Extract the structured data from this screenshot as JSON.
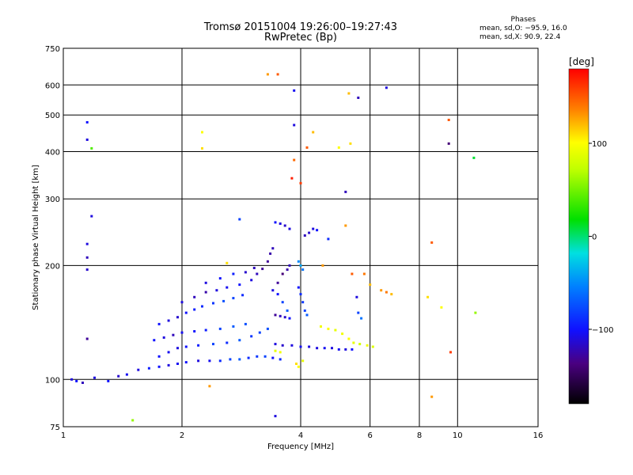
{
  "header": {
    "title_line1": "Tromsø 20151004 19:26:00–19:27:43",
    "title_line2": "RwPretec (Bp)"
  },
  "phases_box": {
    "title": "Phases",
    "line_o": "mean, sd,O: −95.9, 16.0",
    "line_x": "mean, sd,X:  90.9, 22.4"
  },
  "colorbar": {
    "label": "[deg]",
    "tick_labels": [
      "100",
      "0",
      "−100"
    ],
    "tick_values": [
      100,
      0,
      -100
    ],
    "range": [
      -180,
      180
    ]
  },
  "chart_data": {
    "type": "scatter",
    "xlabel": "Frequency [MHz]",
    "ylabel": "Stationary phase Virtual Height [km]",
    "x_scale": "log",
    "y_scale": "log",
    "xlim": [
      1,
      16
    ],
    "ylim": [
      75,
      750
    ],
    "grid": true,
    "x_ticks": [
      1,
      2,
      4,
      6,
      8,
      10,
      16
    ],
    "x_tick_labels": [
      "1",
      "2",
      "4",
      "6",
      "8",
      "10",
      "16"
    ],
    "y_ticks": [
      75,
      100,
      200,
      300,
      400,
      500,
      600,
      750
    ],
    "y_tick_labels": [
      "75",
      "100",
      "200",
      "300",
      "400",
      "500",
      "600",
      "750"
    ],
    "series": [
      {
        "mode": "O",
        "points": [
          [
            1.05,
            100,
            -110
          ],
          [
            1.08,
            99,
            -100
          ],
          [
            1.12,
            98,
            -120
          ],
          [
            1.2,
            101,
            -110
          ],
          [
            1.3,
            99,
            -100
          ],
          [
            1.38,
            102,
            -115
          ],
          [
            1.45,
            103,
            -105
          ],
          [
            1.55,
            106,
            -110
          ],
          [
            1.65,
            107,
            -95
          ],
          [
            1.75,
            108,
            -100
          ],
          [
            1.85,
            109,
            -110
          ],
          [
            1.95,
            110,
            -105
          ],
          [
            2.05,
            111,
            -100
          ],
          [
            2.2,
            112,
            -110
          ],
          [
            2.35,
            112,
            -105
          ],
          [
            2.5,
            112,
            -90
          ],
          [
            2.65,
            113,
            -80
          ],
          [
            2.8,
            113,
            -70
          ],
          [
            2.95,
            114,
            -90
          ],
          [
            3.1,
            115,
            -85
          ],
          [
            3.25,
            115,
            -80
          ],
          [
            3.4,
            114,
            -100
          ],
          [
            3.55,
            113,
            -90
          ],
          [
            1.75,
            115,
            -100
          ],
          [
            1.85,
            118,
            -105
          ],
          [
            1.95,
            121,
            -110
          ],
          [
            2.05,
            122,
            -100
          ],
          [
            2.2,
            123,
            -95
          ],
          [
            2.4,
            124,
            -80
          ],
          [
            2.6,
            125,
            -90
          ],
          [
            2.8,
            127,
            -70
          ],
          [
            3.0,
            130,
            -85
          ],
          [
            3.15,
            133,
            -80
          ],
          [
            3.3,
            136,
            -75
          ],
          [
            1.7,
            127,
            -100
          ],
          [
            1.8,
            129,
            -110
          ],
          [
            1.9,
            131,
            -120
          ],
          [
            2.0,
            133,
            -105
          ],
          [
            2.15,
            134,
            -100
          ],
          [
            2.3,
            135,
            -95
          ],
          [
            2.5,
            136,
            -80
          ],
          [
            2.7,
            138,
            -70
          ],
          [
            2.9,
            140,
            -75
          ],
          [
            1.75,
            140,
            -100
          ],
          [
            1.85,
            143,
            -110
          ],
          [
            1.95,
            146,
            -115
          ],
          [
            2.05,
            150,
            -100
          ],
          [
            2.15,
            153,
            -95
          ],
          [
            2.25,
            156,
            -90
          ],
          [
            2.4,
            159,
            -85
          ],
          [
            2.55,
            161,
            -75
          ],
          [
            2.7,
            164,
            -80
          ],
          [
            2.85,
            167,
            -90
          ],
          [
            2.0,
            160,
            -110
          ],
          [
            2.15,
            165,
            -120
          ],
          [
            2.3,
            170,
            -125
          ],
          [
            2.45,
            172,
            -110
          ],
          [
            2.6,
            175,
            -105
          ],
          [
            2.8,
            178,
            -100
          ],
          [
            3.0,
            183,
            -110
          ],
          [
            3.1,
            190,
            -120
          ],
          [
            3.2,
            196,
            -130
          ],
          [
            3.3,
            205,
            -130
          ],
          [
            3.35,
            215,
            -125
          ],
          [
            3.4,
            222,
            -120
          ],
          [
            2.3,
            180,
            -110
          ],
          [
            2.5,
            185,
            -100
          ],
          [
            2.7,
            190,
            -95
          ],
          [
            2.9,
            192,
            -115
          ],
          [
            3.05,
            197,
            -120
          ],
          [
            3.4,
            172,
            -110
          ],
          [
            3.5,
            168,
            -100
          ],
          [
            3.6,
            160,
            -80
          ],
          [
            3.7,
            152,
            -70
          ],
          [
            3.45,
            148,
            -130
          ],
          [
            3.55,
            147,
            -120
          ],
          [
            3.65,
            146,
            -115
          ],
          [
            3.75,
            145,
            -100
          ],
          [
            3.5,
            180,
            -130
          ],
          [
            3.6,
            190,
            -140
          ],
          [
            3.7,
            195,
            -125
          ],
          [
            3.75,
            200,
            -120
          ],
          [
            3.45,
            260,
            -100
          ],
          [
            3.55,
            258,
            -110
          ],
          [
            3.65,
            255,
            -115
          ],
          [
            3.75,
            250,
            -110
          ],
          [
            4.3,
            250,
            -110
          ],
          [
            4.4,
            248,
            -100
          ],
          [
            4.1,
            240,
            -120
          ],
          [
            4.2,
            244,
            -115
          ],
          [
            3.45,
            124,
            -110
          ],
          [
            3.6,
            123,
            -115
          ],
          [
            3.8,
            123,
            -110
          ],
          [
            4.0,
            122,
            -105
          ],
          [
            4.2,
            122,
            -110
          ],
          [
            4.4,
            121,
            -110
          ],
          [
            4.6,
            121,
            -105
          ],
          [
            4.8,
            121,
            -110
          ],
          [
            5.0,
            120,
            -105
          ],
          [
            5.2,
            120,
            -110
          ],
          [
            5.4,
            120,
            -100
          ],
          [
            3.95,
            175,
            -100
          ],
          [
            4.0,
            168,
            -90
          ],
          [
            4.05,
            160,
            -85
          ],
          [
            4.1,
            152,
            -80
          ],
          [
            4.15,
            148,
            -70
          ],
          [
            3.95,
            205,
            -50
          ],
          [
            4.0,
            200,
            -40
          ],
          [
            4.05,
            195,
            -60
          ],
          [
            5.6,
            150,
            -80
          ],
          [
            5.7,
            145,
            -60
          ],
          [
            5.55,
            165,
            -110
          ],
          [
            1.15,
            478,
            -100
          ],
          [
            1.15,
            430,
            -110
          ],
          [
            1.15,
            228,
            -110
          ],
          [
            1.15,
            210,
            -120
          ],
          [
            1.15,
            195,
            -115
          ],
          [
            1.15,
            128,
            -130
          ],
          [
            1.18,
            270,
            -110
          ],
          [
            3.85,
            470,
            -110
          ],
          [
            3.85,
            580,
            -105
          ],
          [
            5.2,
            313,
            -120
          ],
          [
            5.6,
            555,
            -120
          ],
          [
            6.6,
            590,
            -110
          ],
          [
            2.8,
            265,
            -80
          ],
          [
            3.45,
            80,
            -110
          ],
          [
            4.7,
            235,
            -90
          ],
          [
            9.5,
            420,
            -140
          ]
        ]
      },
      {
        "mode": "X",
        "points": [
          [
            1.18,
            408,
            40
          ],
          [
            1.5,
            78,
            60
          ],
          [
            2.25,
            450,
            100
          ],
          [
            2.25,
            408,
            110
          ],
          [
            2.35,
            96,
            130
          ],
          [
            2.6,
            203,
            110
          ],
          [
            3.3,
            640,
            130
          ],
          [
            3.5,
            640,
            150
          ],
          [
            3.8,
            340,
            170
          ],
          [
            4.15,
            410,
            150
          ],
          [
            4.3,
            450,
            120
          ],
          [
            4.0,
            330,
            160
          ],
          [
            5.3,
            570,
            120
          ],
          [
            5.35,
            420,
            110
          ],
          [
            5.0,
            410,
            100
          ],
          [
            5.2,
            255,
            130
          ],
          [
            5.4,
            190,
            150
          ],
          [
            4.9,
            135,
            90
          ],
          [
            5.1,
            132,
            95
          ],
          [
            5.3,
            128,
            100
          ],
          [
            5.45,
            125,
            90
          ],
          [
            5.65,
            124,
            80
          ],
          [
            5.9,
            123,
            95
          ],
          [
            6.1,
            122,
            85
          ],
          [
            4.5,
            138,
            95
          ],
          [
            4.7,
            136,
            100
          ],
          [
            3.45,
            119,
            90
          ],
          [
            3.55,
            118,
            95
          ],
          [
            3.9,
            110,
            110
          ],
          [
            3.95,
            108,
            100
          ],
          [
            4.05,
            112,
            90
          ],
          [
            6.4,
            172,
            130
          ],
          [
            6.6,
            170,
            140
          ],
          [
            6.8,
            168,
            120
          ],
          [
            5.8,
            190,
            140
          ],
          [
            6.0,
            178,
            120
          ],
          [
            8.4,
            165,
            110
          ],
          [
            8.6,
            230,
            150
          ],
          [
            8.6,
            90,
            130
          ],
          [
            9.1,
            155,
            100
          ],
          [
            9.5,
            485,
            150
          ],
          [
            9.6,
            118,
            160
          ],
          [
            11.1,
            150,
            60
          ],
          [
            11.0,
            385,
            10
          ],
          [
            4.55,
            200,
            130
          ],
          [
            3.85,
            380,
            145
          ]
        ]
      }
    ]
  }
}
